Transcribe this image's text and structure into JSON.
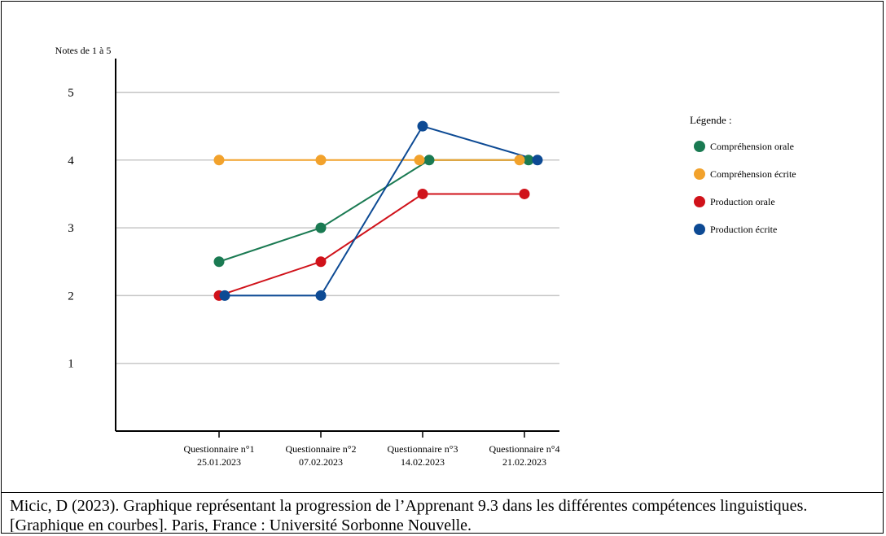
{
  "caption": "Micic, D (2023). Graphique représentant la progression de l’Apprenant 9.3 dans les différentes compétences linguistiques. [Graphique en courbes]. Paris, France : Université Sorbonne Nouvelle.",
  "chart_data": {
    "type": "line",
    "title": "",
    "xlabel": "",
    "ylabel": "Notes de 1 à 5",
    "ylim": [
      0,
      5
    ],
    "yticks": [
      1,
      2,
      3,
      4,
      5
    ],
    "grid": true,
    "categories": [
      {
        "line1": "Questionnaire n°1",
        "line2": "25.01.2023"
      },
      {
        "line1": "Questionnaire n°2",
        "line2": "07.02.2023"
      },
      {
        "line1": "Questionnaire n°3",
        "line2": "14.02.2023"
      },
      {
        "line1": "Questionnaire n°4",
        "line2": "21.02.2023"
      }
    ],
    "legend_title": "Légende :",
    "legend_position": "right",
    "series": [
      {
        "name": "Compréhension orale",
        "color": "#1a7a52",
        "values": [
          2.5,
          3,
          4,
          4
        ]
      },
      {
        "name": "Compréhension écrite",
        "color": "#f2a22c",
        "values": [
          4,
          4,
          4,
          4
        ]
      },
      {
        "name": "Production orale",
        "color": "#d0121a",
        "values": [
          2,
          2.5,
          3.5,
          3.5
        ]
      },
      {
        "name": "Production écrite",
        "color": "#0d4a94",
        "values": [
          2,
          2,
          4.5,
          4
        ]
      }
    ]
  }
}
